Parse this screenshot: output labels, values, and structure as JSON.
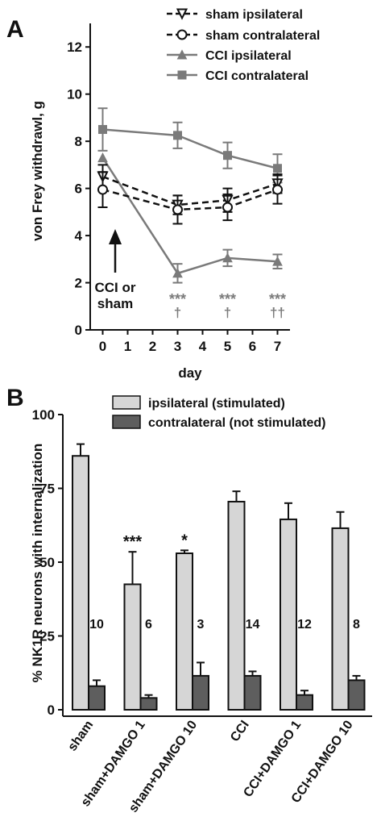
{
  "panel_a": {
    "letter": "A",
    "chart_data": {
      "type": "line",
      "ylabel": "von Frey withdrawl, g",
      "xlabel": "day",
      "ylim": [
        0,
        13
      ],
      "xlim": [
        -0.5,
        7.5
      ],
      "yticks": [
        "0",
        "2",
        "4",
        "6",
        "8",
        "10",
        "12"
      ],
      "xticks": [
        "0",
        "1",
        "2",
        "3",
        "4",
        "5",
        "6",
        "7"
      ],
      "series": [
        {
          "name": "sham ipsilateral",
          "x": [
            0,
            3,
            5,
            7
          ],
          "y": [
            6.5,
            5.3,
            5.5,
            6.2
          ],
          "err": [
            0.5,
            0.4,
            0.5,
            0.4
          ],
          "color": "#111111",
          "marker": "triangle-down-open",
          "dash": true
        },
        {
          "name": "sham contralateral",
          "x": [
            0,
            3,
            5,
            7
          ],
          "y": [
            5.95,
            5.1,
            5.2,
            5.95
          ],
          "err": [
            0.75,
            0.6,
            0.55,
            0.6
          ],
          "color": "#111111",
          "marker": "circle-open",
          "dash": true
        },
        {
          "name": "CCI ipsilateral",
          "x": [
            0,
            3,
            5,
            7
          ],
          "y": [
            7.3,
            2.4,
            3.05,
            2.9
          ],
          "err": [
            0.0,
            0.4,
            0.35,
            0.3
          ],
          "color": "#7a7a7a",
          "marker": "triangle-up",
          "dash": false
        },
        {
          "name": "CCI contralateral",
          "x": [
            0,
            3,
            5,
            7
          ],
          "y": [
            8.5,
            8.25,
            7.4,
            6.85
          ],
          "err": [
            0.9,
            0.55,
            0.55,
            0.6
          ],
          "color": "#7a7a7a",
          "marker": "square",
          "dash": false
        }
      ],
      "significance": [
        {
          "x": 3,
          "stars": "***",
          "dagger": "†"
        },
        {
          "x": 5,
          "stars": "***",
          "dagger": "†"
        },
        {
          "x": 7,
          "stars": "***",
          "dagger": "††"
        }
      ],
      "annotation": {
        "line1": "CCI or",
        "line2": "sham"
      }
    }
  },
  "panel_b": {
    "letter": "B",
    "chart_data": {
      "type": "bar",
      "ylabel": "% NK1R neurons with internalization",
      "ylim": [
        0,
        100
      ],
      "yticks": [
        "0",
        "25",
        "50",
        "75",
        "100"
      ],
      "categories": [
        "sham",
        "sham+DAMGO 1",
        "sham+DAMGO 10",
        "CCI",
        "CCI+DAMGO 1",
        "CCI+DAMGO 10"
      ],
      "series": [
        {
          "name": "ipsilateral (stimulated)",
          "values": [
            86,
            42.5,
            53,
            70.5,
            64.5,
            61.5
          ],
          "err": [
            4,
            11,
            1,
            3.5,
            5.5,
            5.5
          ],
          "color": "#d6d6d6"
        },
        {
          "name": "contralateral (not stimulated)",
          "values": [
            8,
            4,
            11.5,
            11.5,
            5,
            10
          ],
          "err": [
            2,
            1,
            4.5,
            1.5,
            1.5,
            1.5
          ],
          "color": "#5e5e5e"
        }
      ],
      "n_labels": [
        "10",
        "6",
        "3",
        "14",
        "12",
        "8"
      ],
      "stars": [
        "",
        "***",
        "*",
        "",
        "",
        ""
      ]
    }
  }
}
